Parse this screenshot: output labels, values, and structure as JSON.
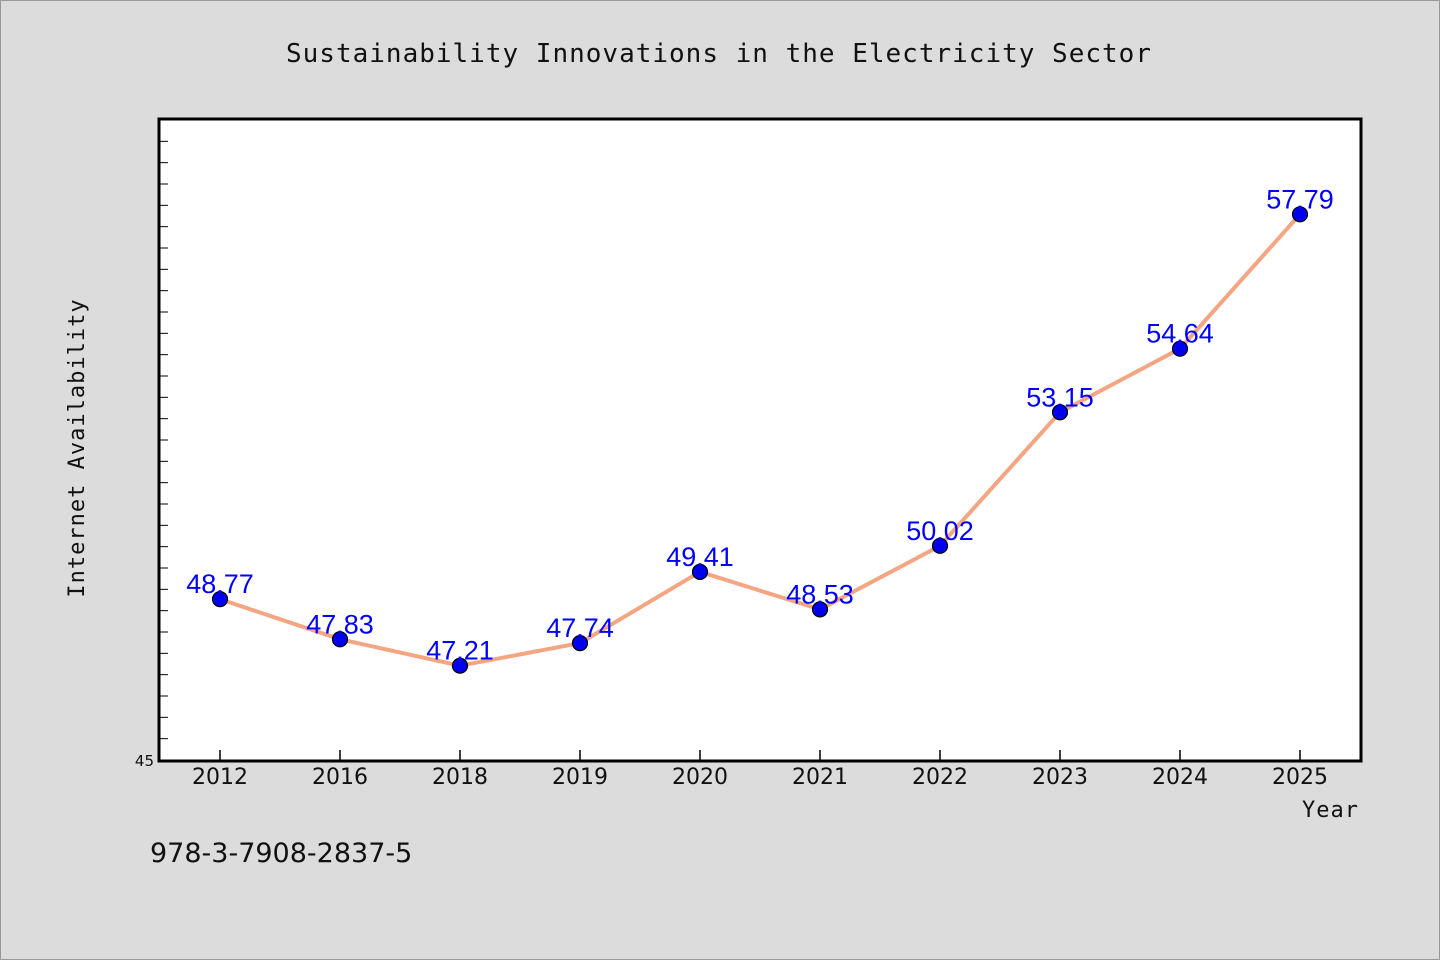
{
  "chart_data": {
    "type": "line",
    "title": "Sustainability Innovations in the Electricity Sector",
    "xlabel": "Year",
    "ylabel": "Internet Availability",
    "categories": [
      "2012",
      "2016",
      "2018",
      "2019",
      "2020",
      "2021",
      "2022",
      "2023",
      "2024",
      "2025"
    ],
    "values": [
      48.77,
      47.83,
      47.21,
      47.74,
      49.41,
      48.53,
      50.02,
      53.15,
      54.64,
      57.79
    ],
    "data_labels": [
      "48.77",
      "47.83",
      "47.21",
      "47.74",
      "49.41",
      "48.53",
      "50.02",
      "53.15",
      "54.64",
      "57.79"
    ],
    "ylim": [
      45,
      60
    ],
    "y_tick_labels": [
      "45"
    ],
    "grid": false,
    "legend": "none",
    "colors": {
      "line": "#f4a582",
      "marker": "#0000ee",
      "label": "#0000ff",
      "background": "#dcdcdc",
      "plot_bg": "#ffffff"
    }
  },
  "footer": {
    "code": "978-3-7908-2837-5"
  }
}
